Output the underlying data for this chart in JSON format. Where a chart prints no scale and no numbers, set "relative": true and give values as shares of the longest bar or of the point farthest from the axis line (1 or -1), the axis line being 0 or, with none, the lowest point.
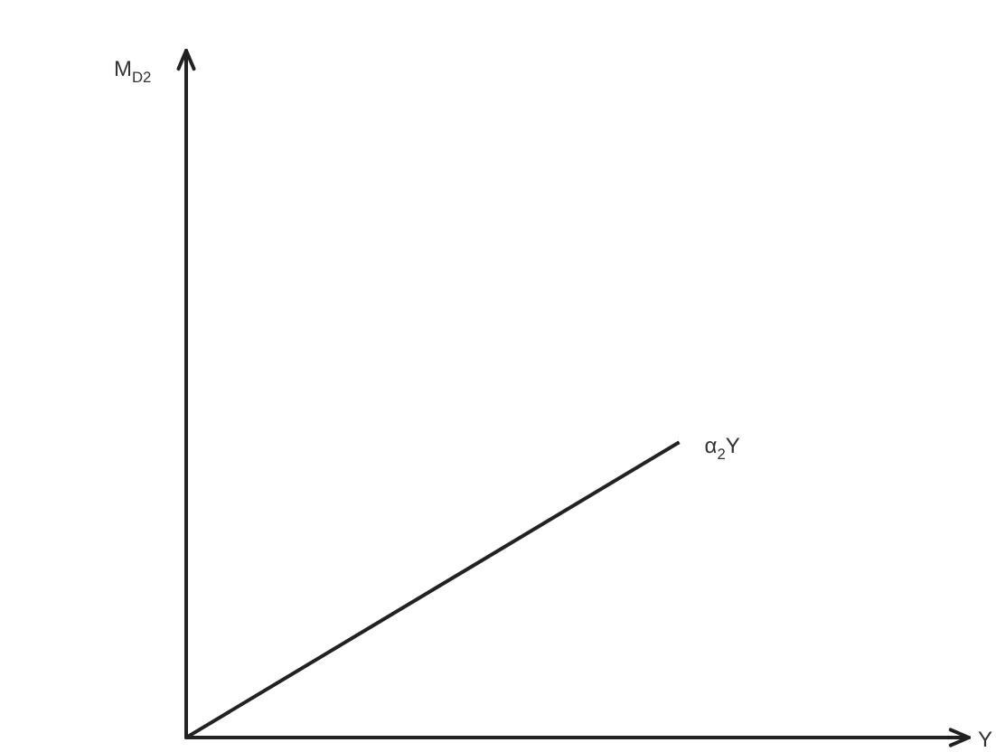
{
  "chart_data": {
    "type": "line",
    "xlabel": "Y",
    "annotations": [
      "M$_{D2}$"
    ],
    "relative": true,
    "marker": "none",
    "categories": [
      null,
      null
    ],
    "series": [
      {
        "name": "α$_{2}$Y",
        "color": "#222222",
        "values": [
          0,
          1
        ]
      }
    ]
  }
}
